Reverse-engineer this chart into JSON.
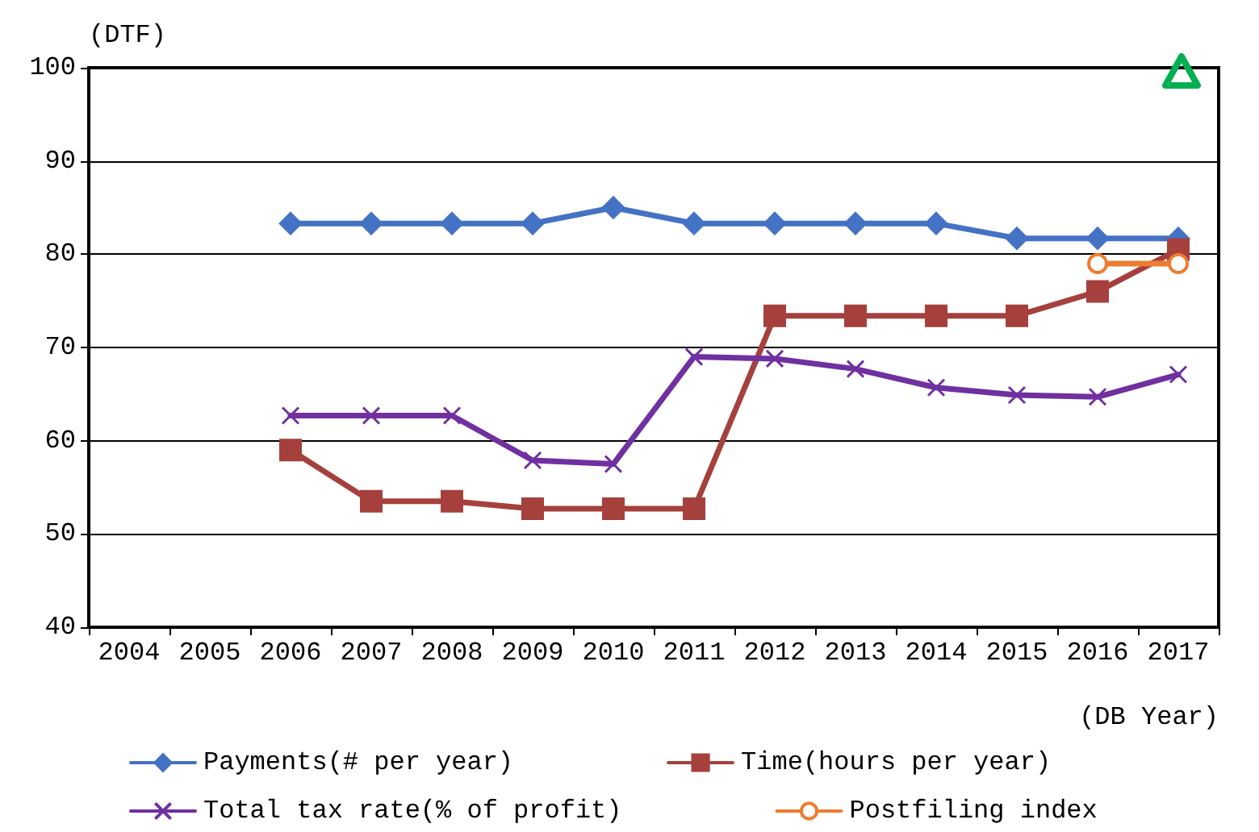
{
  "chart_data": {
    "type": "line",
    "ylabel": "(DTF)",
    "xlabel": "(DB Year)",
    "categories": [
      "2004",
      "2005",
      "2006",
      "2007",
      "2008",
      "2009",
      "2010",
      "2011",
      "2012",
      "2013",
      "2014",
      "2015",
      "2016",
      "2017"
    ],
    "series": [
      {
        "name": "Payments(# per year)",
        "color": "#4472c4",
        "marker": "diamond",
        "values": [
          null,
          null,
          83.3,
          83.3,
          83.3,
          83.3,
          85,
          83.3,
          83.3,
          83.3,
          83.3,
          81.7,
          81.7,
          81.7
        ]
      },
      {
        "name": "Time(hours per year)",
        "color": "#a5403d",
        "marker": "square",
        "values": [
          null,
          null,
          59,
          53.5,
          53.5,
          52.7,
          52.7,
          52.7,
          73.4,
          73.4,
          73.4,
          73.4,
          76,
          80.5
        ]
      },
      {
        "name": "Total tax rate(% of profit)",
        "color": "#7030a0",
        "marker": "cross",
        "values": [
          null,
          null,
          62.7,
          62.7,
          62.7,
          57.9,
          57.5,
          69,
          68.8,
          67.7,
          65.7,
          64.9,
          64.7,
          67.1
        ]
      },
      {
        "name": "Postfiling index",
        "color": "#ed7d31",
        "marker": "circle",
        "values": [
          null,
          null,
          null,
          null,
          null,
          null,
          null,
          null,
          null,
          null,
          null,
          null,
          79,
          79
        ]
      }
    ],
    "ylim": [
      40,
      100
    ],
    "yticks": [
      40,
      50,
      60,
      70,
      80,
      90,
      100
    ],
    "grid": "y",
    "legend": "bottom"
  }
}
